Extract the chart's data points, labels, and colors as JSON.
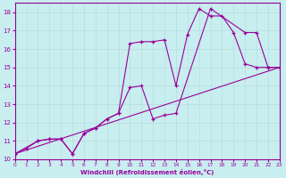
{
  "xlabel": "Windchill (Refroidissement éolien,°C)",
  "bg_color": "#c8eef0",
  "line_color": "#990099",
  "grid_color": "#b8dde0",
  "xlim": [
    0,
    23
  ],
  "ylim": [
    10,
    18.5
  ],
  "xticks": [
    0,
    1,
    2,
    3,
    4,
    5,
    6,
    7,
    8,
    9,
    10,
    11,
    12,
    13,
    14,
    15,
    16,
    17,
    18,
    19,
    20,
    21,
    22,
    23
  ],
  "yticks": [
    10,
    11,
    12,
    13,
    14,
    15,
    16,
    17,
    18
  ],
  "series1_x": [
    0,
    1,
    2,
    3,
    4,
    5,
    6,
    7,
    8,
    9,
    10,
    11,
    12,
    13,
    14,
    15,
    16,
    17,
    18,
    19,
    20,
    21,
    22,
    23
  ],
  "series1_y": [
    10.3,
    10.6,
    11.0,
    11.1,
    11.1,
    10.3,
    11.4,
    11.7,
    12.2,
    12.5,
    16.3,
    16.4,
    16.4,
    16.5,
    14.0,
    16.8,
    18.2,
    17.8,
    17.8,
    16.9,
    15.2,
    15.0,
    15.0,
    15.0
  ],
  "series2_x": [
    0,
    2,
    3,
    4,
    5,
    6,
    7,
    8,
    9,
    10,
    11,
    12,
    13,
    14,
    17,
    20,
    21,
    22,
    23
  ],
  "series2_y": [
    10.3,
    11.0,
    11.1,
    11.1,
    10.3,
    11.4,
    11.7,
    12.2,
    12.5,
    13.9,
    14.0,
    12.2,
    12.4,
    12.5,
    18.2,
    16.9,
    16.9,
    15.0,
    15.0
  ],
  "series3_x": [
    0,
    23
  ],
  "series3_y": [
    10.3,
    15.0
  ]
}
